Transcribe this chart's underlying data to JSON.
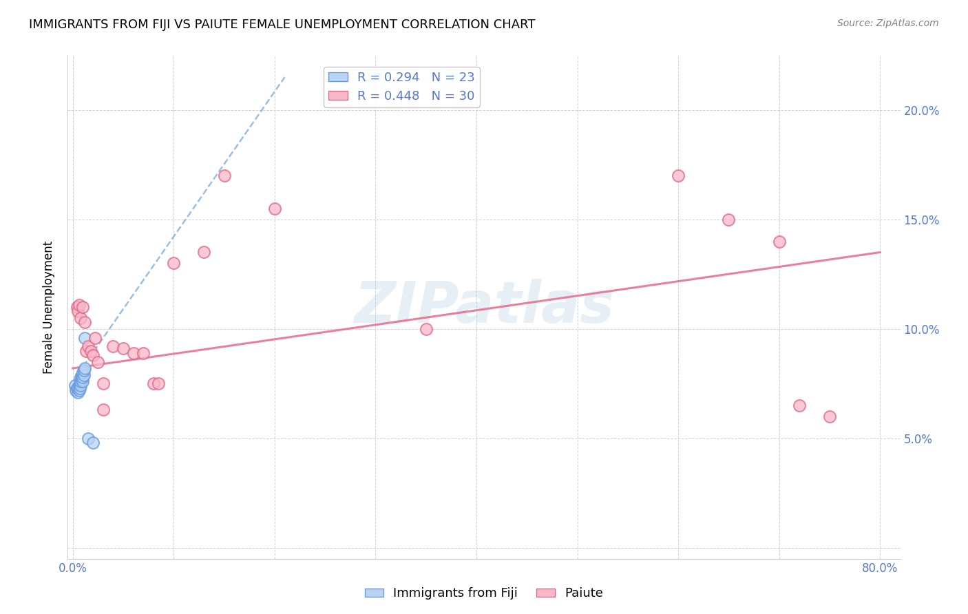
{
  "title": "IMMIGRANTS FROM FIJI VS PAIUTE FEMALE UNEMPLOYMENT CORRELATION CHART",
  "source": "Source: ZipAtlas.com",
  "ylabel": "Female Unemployment",
  "xlim": [
    -0.005,
    0.82
  ],
  "ylim": [
    -0.005,
    0.225
  ],
  "xticks": [
    0.0,
    0.1,
    0.2,
    0.3,
    0.4,
    0.5,
    0.6,
    0.7,
    0.8
  ],
  "xticklabels": [
    "0.0%",
    "",
    "",
    "",
    "",
    "",
    "",
    "",
    "80.0%"
  ],
  "yticks": [
    0.0,
    0.05,
    0.1,
    0.15,
    0.2
  ],
  "yticklabels_right": [
    "",
    "5.0%",
    "10.0%",
    "15.0%",
    "20.0%"
  ],
  "fiji_R": 0.294,
  "fiji_N": 23,
  "paiute_R": 0.448,
  "paiute_N": 30,
  "fiji_fill_color": "#b8d4f5",
  "paiute_fill_color": "#f8b8c8",
  "fiji_edge_color": "#6699dd",
  "paiute_edge_color": "#e06888",
  "fiji_line_color": "#8ab4dd",
  "paiute_line_color": "#e87090",
  "watermark_color": "#b8d0e8",
  "fiji_x": [
    0.002,
    0.003,
    0.004,
    0.005,
    0.005,
    0.006,
    0.006,
    0.007,
    0.007,
    0.008,
    0.008,
    0.008,
    0.009,
    0.009,
    0.01,
    0.01,
    0.01,
    0.011,
    0.011,
    0.012,
    0.012,
    0.015,
    0.02
  ],
  "fiji_y": [
    0.074,
    0.072,
    0.073,
    0.071,
    0.073,
    0.072,
    0.074,
    0.073,
    0.075,
    0.074,
    0.076,
    0.078,
    0.077,
    0.079,
    0.076,
    0.078,
    0.08,
    0.079,
    0.081,
    0.096,
    0.082,
    0.05,
    0.048
  ],
  "paiute_x": [
    0.004,
    0.005,
    0.006,
    0.008,
    0.01,
    0.012,
    0.013,
    0.015,
    0.018,
    0.02,
    0.022,
    0.025,
    0.03,
    0.03,
    0.04,
    0.05,
    0.06,
    0.07,
    0.08,
    0.085,
    0.1,
    0.13,
    0.15,
    0.2,
    0.35,
    0.6,
    0.65,
    0.7,
    0.72,
    0.75
  ],
  "paiute_y": [
    0.11,
    0.108,
    0.111,
    0.105,
    0.11,
    0.103,
    0.09,
    0.092,
    0.09,
    0.088,
    0.096,
    0.085,
    0.063,
    0.075,
    0.092,
    0.091,
    0.089,
    0.089,
    0.075,
    0.075,
    0.13,
    0.135,
    0.17,
    0.155,
    0.1,
    0.17,
    0.15,
    0.14,
    0.065,
    0.06
  ],
  "fiji_trendline_x": [
    0.0,
    0.21
  ],
  "fiji_trendline_y": [
    0.076,
    0.215
  ],
  "paiute_trendline_x": [
    0.0,
    0.8
  ],
  "paiute_trendline_y": [
    0.082,
    0.135
  ]
}
